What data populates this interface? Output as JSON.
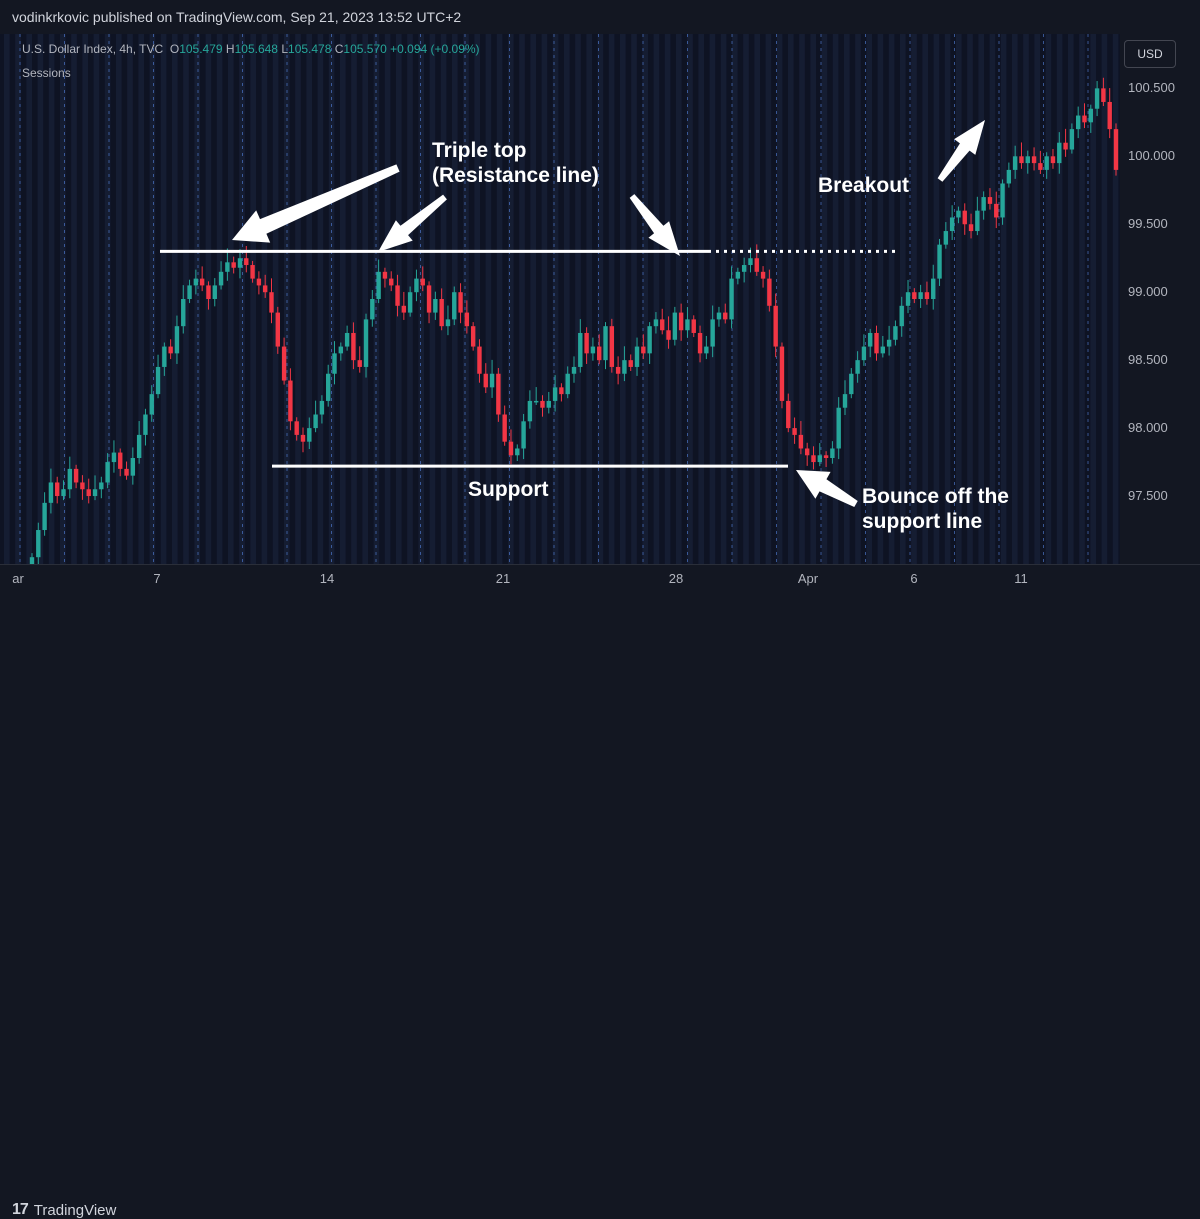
{
  "header": {
    "publisher_line": "vodinkrkovic published on TradingView.com, Sep 21, 2023 13:52 UTC+2"
  },
  "legend": {
    "symbol": "U.S. Dollar Index, 4h, TVC",
    "o_label": "O",
    "o_value": "105.479",
    "h_label": "H",
    "h_value": "105.648",
    "l_label": "L",
    "l_value": "105.478",
    "c_label": "C",
    "c_value": "105.570",
    "change": "+0.094 (+0.09%)",
    "indicator": "Sessions"
  },
  "currency_button": "USD",
  "footer": {
    "logo_text": "TradingView",
    "logo_icon": "tradingview-logo-icon"
  },
  "annotations": {
    "triple_top_line1": "Triple top",
    "triple_top_line2": "(Resistance line)",
    "support": "Support",
    "breakout": "Breakout",
    "bounce_line1": "Bounce off the",
    "bounce_line2": "support line"
  },
  "colors": {
    "up": "#26a69a",
    "down": "#f23645",
    "background": "#131722",
    "session_band": "#1c2640",
    "session_line": "#5b8def"
  },
  "chart_data": {
    "type": "candlestick",
    "title": "U.S. Dollar Index, 4h, TVC",
    "x_ticks": [
      "ar",
      "7",
      "14",
      "21",
      "28",
      "Apr",
      "6",
      "11"
    ],
    "y_ticks": [
      "100.500",
      "100.000",
      "99.500",
      "99.000",
      "98.500",
      "98.000",
      "97.500"
    ],
    "ylim": [
      97.0,
      100.9
    ],
    "grid": false,
    "levels": {
      "resistance": 99.3,
      "support": 97.72
    },
    "close_series": [
      97.05,
      97.25,
      97.45,
      97.6,
      97.5,
      97.55,
      97.7,
      97.6,
      97.55,
      97.5,
      97.55,
      97.6,
      97.75,
      97.82,
      97.7,
      97.65,
      97.78,
      97.95,
      98.1,
      98.25,
      98.45,
      98.6,
      98.55,
      98.75,
      98.95,
      99.05,
      99.1,
      99.05,
      98.95,
      99.05,
      99.15,
      99.22,
      99.18,
      99.25,
      99.2,
      99.1,
      99.05,
      99.0,
      98.85,
      98.6,
      98.35,
      98.05,
      97.95,
      97.9,
      98.0,
      98.1,
      98.2,
      98.4,
      98.55,
      98.6,
      98.7,
      98.5,
      98.45,
      98.8,
      98.95,
      99.15,
      99.1,
      99.05,
      98.9,
      98.85,
      99.0,
      99.1,
      99.05,
      98.85,
      98.95,
      98.75,
      98.8,
      99.0,
      98.85,
      98.75,
      98.6,
      98.4,
      98.3,
      98.4,
      98.1,
      97.9,
      97.8,
      97.85,
      98.05,
      98.2,
      98.2,
      98.15,
      98.2,
      98.3,
      98.25,
      98.4,
      98.45,
      98.7,
      98.55,
      98.6,
      98.5,
      98.75,
      98.45,
      98.4,
      98.5,
      98.45,
      98.6,
      98.55,
      98.75,
      98.8,
      98.72,
      98.65,
      98.85,
      98.72,
      98.8,
      98.7,
      98.55,
      98.6,
      98.8,
      98.85,
      98.8,
      99.1,
      99.15,
      99.2,
      99.25,
      99.15,
      99.1,
      98.9,
      98.6,
      98.2,
      98.0,
      97.95,
      97.85,
      97.8,
      97.75,
      97.8,
      97.78,
      97.85,
      98.15,
      98.25,
      98.4,
      98.5,
      98.6,
      98.7,
      98.55,
      98.6,
      98.65,
      98.75,
      98.9,
      99.0,
      98.95,
      99.0,
      98.95,
      99.1,
      99.35,
      99.45,
      99.55,
      99.6,
      99.5,
      99.45,
      99.6,
      99.7,
      99.65,
      99.55,
      99.8,
      99.9,
      100.0,
      99.95,
      100.0,
      99.95,
      99.9,
      100.0,
      99.95,
      100.1,
      100.05,
      100.2,
      100.3,
      100.25,
      100.35,
      100.5,
      100.4,
      100.2,
      99.9
    ]
  }
}
